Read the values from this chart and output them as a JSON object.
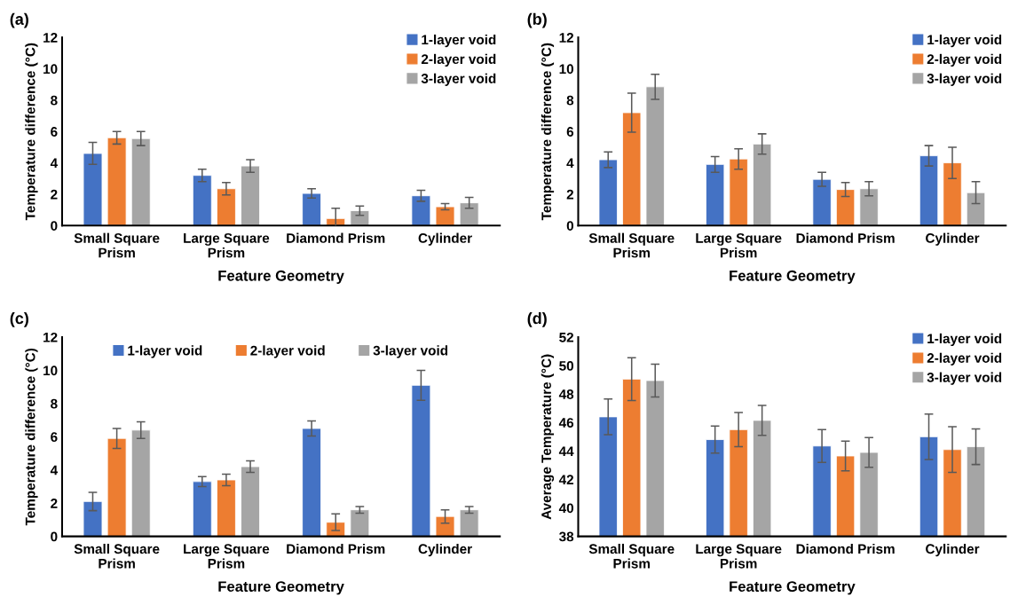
{
  "chart_data": [
    {
      "type": "bar",
      "title": "(a)",
      "xlabel": "Feature Geometry",
      "ylabel": "Temperature difference (°C)",
      "categories": [
        "Small Square\nPrism",
        "Large Square\nPrism",
        "Diamond Prism",
        "Cylinder"
      ],
      "ylim": [
        0,
        12
      ],
      "yticks": [
        0,
        2,
        4,
        6,
        8,
        10,
        12
      ],
      "grid": false,
      "legend": "top right",
      "series": [
        {
          "name": "1-layer void",
          "color": "#4472c4",
          "values": [
            4.6,
            3.2,
            2.05,
            1.9
          ],
          "errors": [
            0.7,
            0.4,
            0.3,
            0.35
          ]
        },
        {
          "name": "2-layer void",
          "color": "#ed7d31",
          "values": [
            5.6,
            2.35,
            0.45,
            1.2
          ],
          "errors": [
            0.4,
            0.4,
            0.65,
            0.2
          ]
        },
        {
          "name": "3-layer void",
          "color": "#a5a5a5",
          "values": [
            5.55,
            3.8,
            0.95,
            1.45
          ],
          "errors": [
            0.45,
            0.4,
            0.3,
            0.35
          ]
        }
      ]
    },
    {
      "type": "bar",
      "title": "(b)",
      "xlabel": "Feature Geometry",
      "ylabel": "Temperature difference (°C)",
      "categories": [
        "Small Square\nPrism",
        "Large Square\nPrism",
        "Diamond Prism",
        "Cylinder"
      ],
      "ylim": [
        0,
        12
      ],
      "yticks": [
        0,
        2,
        4,
        6,
        8,
        10,
        12
      ],
      "grid": false,
      "legend": "top right",
      "series": [
        {
          "name": "1-layer void",
          "color": "#4472c4",
          "values": [
            4.2,
            3.9,
            2.95,
            4.45
          ],
          "errors": [
            0.5,
            0.5,
            0.45,
            0.65
          ]
        },
        {
          "name": "2-layer void",
          "color": "#ed7d31",
          "values": [
            7.2,
            4.25,
            2.3,
            4.0
          ],
          "errors": [
            1.25,
            0.65,
            0.45,
            1.0
          ]
        },
        {
          "name": "3-layer void",
          "color": "#a5a5a5",
          "values": [
            8.85,
            5.2,
            2.35,
            2.1
          ],
          "errors": [
            0.8,
            0.65,
            0.45,
            0.7
          ]
        }
      ]
    },
    {
      "type": "bar",
      "title": "(c)",
      "xlabel": "Feature Geometry",
      "ylabel": "Temperature difference (°C)",
      "categories": [
        "Small Square\nPrism",
        "Large Square\nPrism",
        "Diamond Prism",
        "Cylinder"
      ],
      "ylim": [
        0,
        12
      ],
      "yticks": [
        0,
        2,
        4,
        6,
        8,
        10,
        12
      ],
      "grid": false,
      "legend": "top",
      "series": [
        {
          "name": "1-layer void",
          "color": "#4472c4",
          "values": [
            2.1,
            3.3,
            6.5,
            9.1
          ],
          "errors": [
            0.55,
            0.3,
            0.45,
            0.9
          ]
        },
        {
          "name": "2-layer void",
          "color": "#ed7d31",
          "values": [
            5.9,
            3.4,
            0.85,
            1.2
          ],
          "errors": [
            0.6,
            0.35,
            0.5,
            0.4
          ]
        },
        {
          "name": "3-layer void",
          "color": "#a5a5a5",
          "values": [
            6.4,
            4.2,
            1.6,
            1.6
          ],
          "errors": [
            0.5,
            0.35,
            0.2,
            0.2
          ]
        }
      ]
    },
    {
      "type": "bar",
      "title": "(d)",
      "xlabel": "Feature Geometry",
      "ylabel": "Average Temperature (°C)",
      "categories": [
        "Small Square\nPrism",
        "Large Square\nPrism",
        "Diamond Prism",
        "Cylinder"
      ],
      "ylim": [
        38,
        52
      ],
      "yticks": [
        38,
        40,
        42,
        44,
        46,
        48,
        50,
        52
      ],
      "grid": false,
      "legend": "top right",
      "series": [
        {
          "name": "1-layer void",
          "color": "#4472c4",
          "values": [
            46.4,
            44.8,
            44.35,
            45.0
          ],
          "errors": [
            1.25,
            0.95,
            1.15,
            1.6
          ]
        },
        {
          "name": "2-layer void",
          "color": "#ed7d31",
          "values": [
            49.05,
            45.5,
            43.65,
            44.1
          ],
          "errors": [
            1.5,
            1.2,
            1.05,
            1.6
          ]
        },
        {
          "name": "3-layer void",
          "color": "#a5a5a5",
          "values": [
            48.95,
            46.15,
            43.9,
            44.3
          ],
          "errors": [
            1.15,
            1.05,
            1.05,
            1.25
          ]
        }
      ]
    }
  ]
}
